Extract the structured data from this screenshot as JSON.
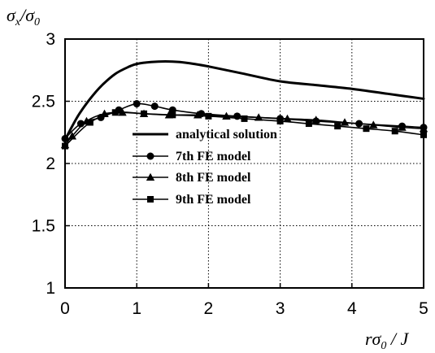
{
  "chart_data": {
    "type": "line",
    "title": "",
    "xlabel": "rσ0 / J",
    "ylabel": "σx/σ0",
    "xlim": [
      0,
      5
    ],
    "ylim": [
      1,
      3
    ],
    "xticks": [
      "0",
      "1",
      "2",
      "3",
      "4",
      "5"
    ],
    "yticks": [
      "1",
      "1.5",
      "2",
      "2.5",
      "3"
    ],
    "grid": true,
    "legend_position": "center",
    "series": [
      {
        "name": "analytical solution",
        "marker": "none",
        "x": [
          0,
          0.1,
          0.2,
          0.35,
          0.5,
          0.7,
          0.9,
          1.0,
          1.2,
          1.4,
          1.6,
          1.8,
          2.0,
          2.5,
          3.0,
          3.5,
          4.0,
          4.5,
          5.0
        ],
        "values": [
          2.19,
          2.3,
          2.4,
          2.52,
          2.62,
          2.72,
          2.78,
          2.8,
          2.815,
          2.82,
          2.815,
          2.8,
          2.78,
          2.72,
          2.66,
          2.63,
          2.6,
          2.56,
          2.52
        ]
      },
      {
        "name": "7th FE model",
        "marker": "circle",
        "x": [
          0,
          0.22,
          0.5,
          0.75,
          1.0,
          1.25,
          1.5,
          1.9,
          2.4,
          3.0,
          3.5,
          4.1,
          4.7,
          5.0
        ],
        "values": [
          2.2,
          2.32,
          2.37,
          2.43,
          2.48,
          2.46,
          2.43,
          2.4,
          2.38,
          2.36,
          2.34,
          2.32,
          2.3,
          2.29
        ]
      },
      {
        "name": "8th FE model",
        "marker": "triangle",
        "x": [
          0,
          0.1,
          0.3,
          0.55,
          0.8,
          1.1,
          1.45,
          1.85,
          2.25,
          2.7,
          3.1,
          3.5,
          3.9,
          4.3,
          4.7,
          5.0
        ],
        "values": [
          2.15,
          2.22,
          2.34,
          2.4,
          2.41,
          2.4,
          2.39,
          2.39,
          2.38,
          2.37,
          2.36,
          2.35,
          2.33,
          2.31,
          2.29,
          2.28
        ]
      },
      {
        "name": "9th FE model",
        "marker": "square",
        "x": [
          0,
          0.35,
          0.7,
          1.1,
          1.5,
          2.0,
          2.5,
          3.0,
          3.4,
          3.8,
          4.2,
          4.6,
          5.0
        ],
        "values": [
          2.14,
          2.33,
          2.41,
          2.4,
          2.39,
          2.38,
          2.36,
          2.34,
          2.32,
          2.3,
          2.28,
          2.26,
          2.23
        ]
      }
    ]
  }
}
